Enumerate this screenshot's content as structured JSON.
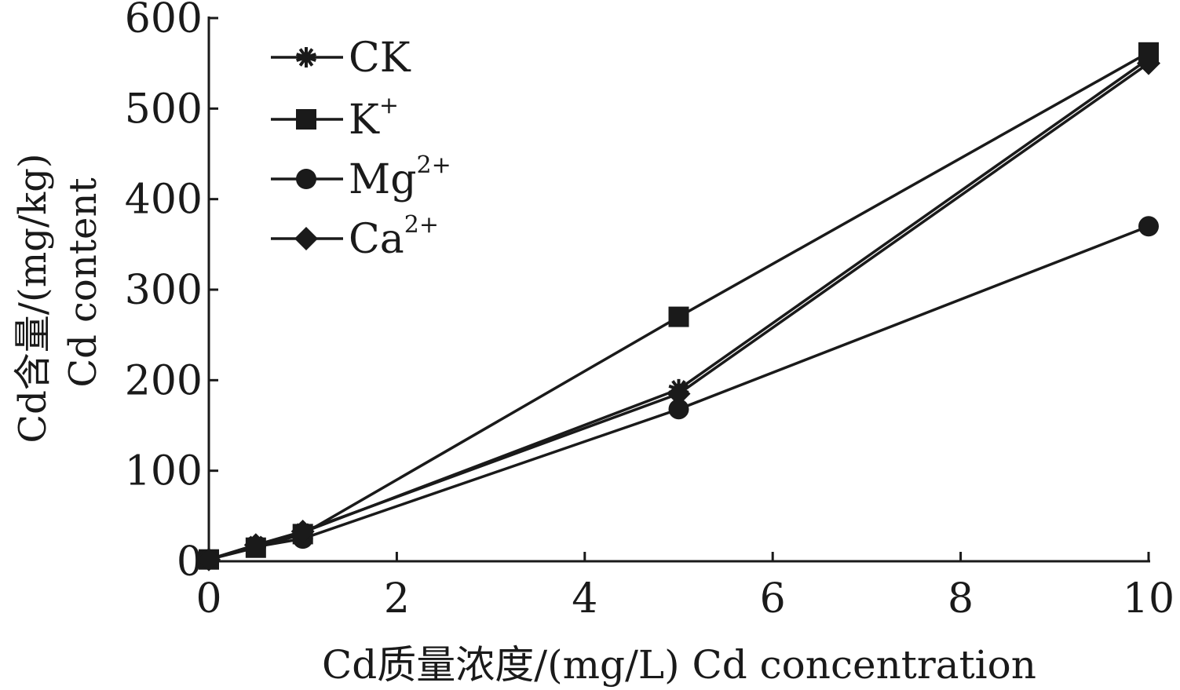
{
  "chart_data": {
    "type": "line",
    "xlabel": "Cd质量浓度/(mg/L)  Cd concentration",
    "ylabel_cn": "Cd含量/(mg/kg)",
    "ylabel_en": "Cd content",
    "xlim": [
      0,
      10
    ],
    "ylim": [
      0,
      600
    ],
    "xticks": [
      "0",
      "2",
      "4",
      "6",
      "8",
      "10"
    ],
    "yticks": [
      "0",
      "100",
      "200",
      "300",
      "400",
      "500",
      "600"
    ],
    "grid": false,
    "legend_position": "top-left",
    "x": [
      0,
      0.5,
      1,
      5,
      10
    ],
    "series": [
      {
        "name": "CK",
        "name_base": "CK",
        "name_sup": "",
        "marker": "star",
        "values": [
          2,
          18,
          32,
          190,
          555
        ]
      },
      {
        "name": "K+",
        "name_base": "K",
        "name_sup": "+",
        "marker": "square",
        "values": [
          2,
          15,
          30,
          270,
          562
        ]
      },
      {
        "name": "Mg2+",
        "name_base": "Mg",
        "name_sup": "2+",
        "marker": "circle",
        "values": [
          2,
          16,
          25,
          168,
          370
        ]
      },
      {
        "name": "Ca2+",
        "name_base": "Ca",
        "name_sup": "2+",
        "marker": "diamond",
        "values": [
          2,
          18,
          33,
          185,
          550
        ]
      }
    ],
    "colors": {
      "line": "#1a1a1a",
      "text": "#1a1a1a"
    }
  }
}
